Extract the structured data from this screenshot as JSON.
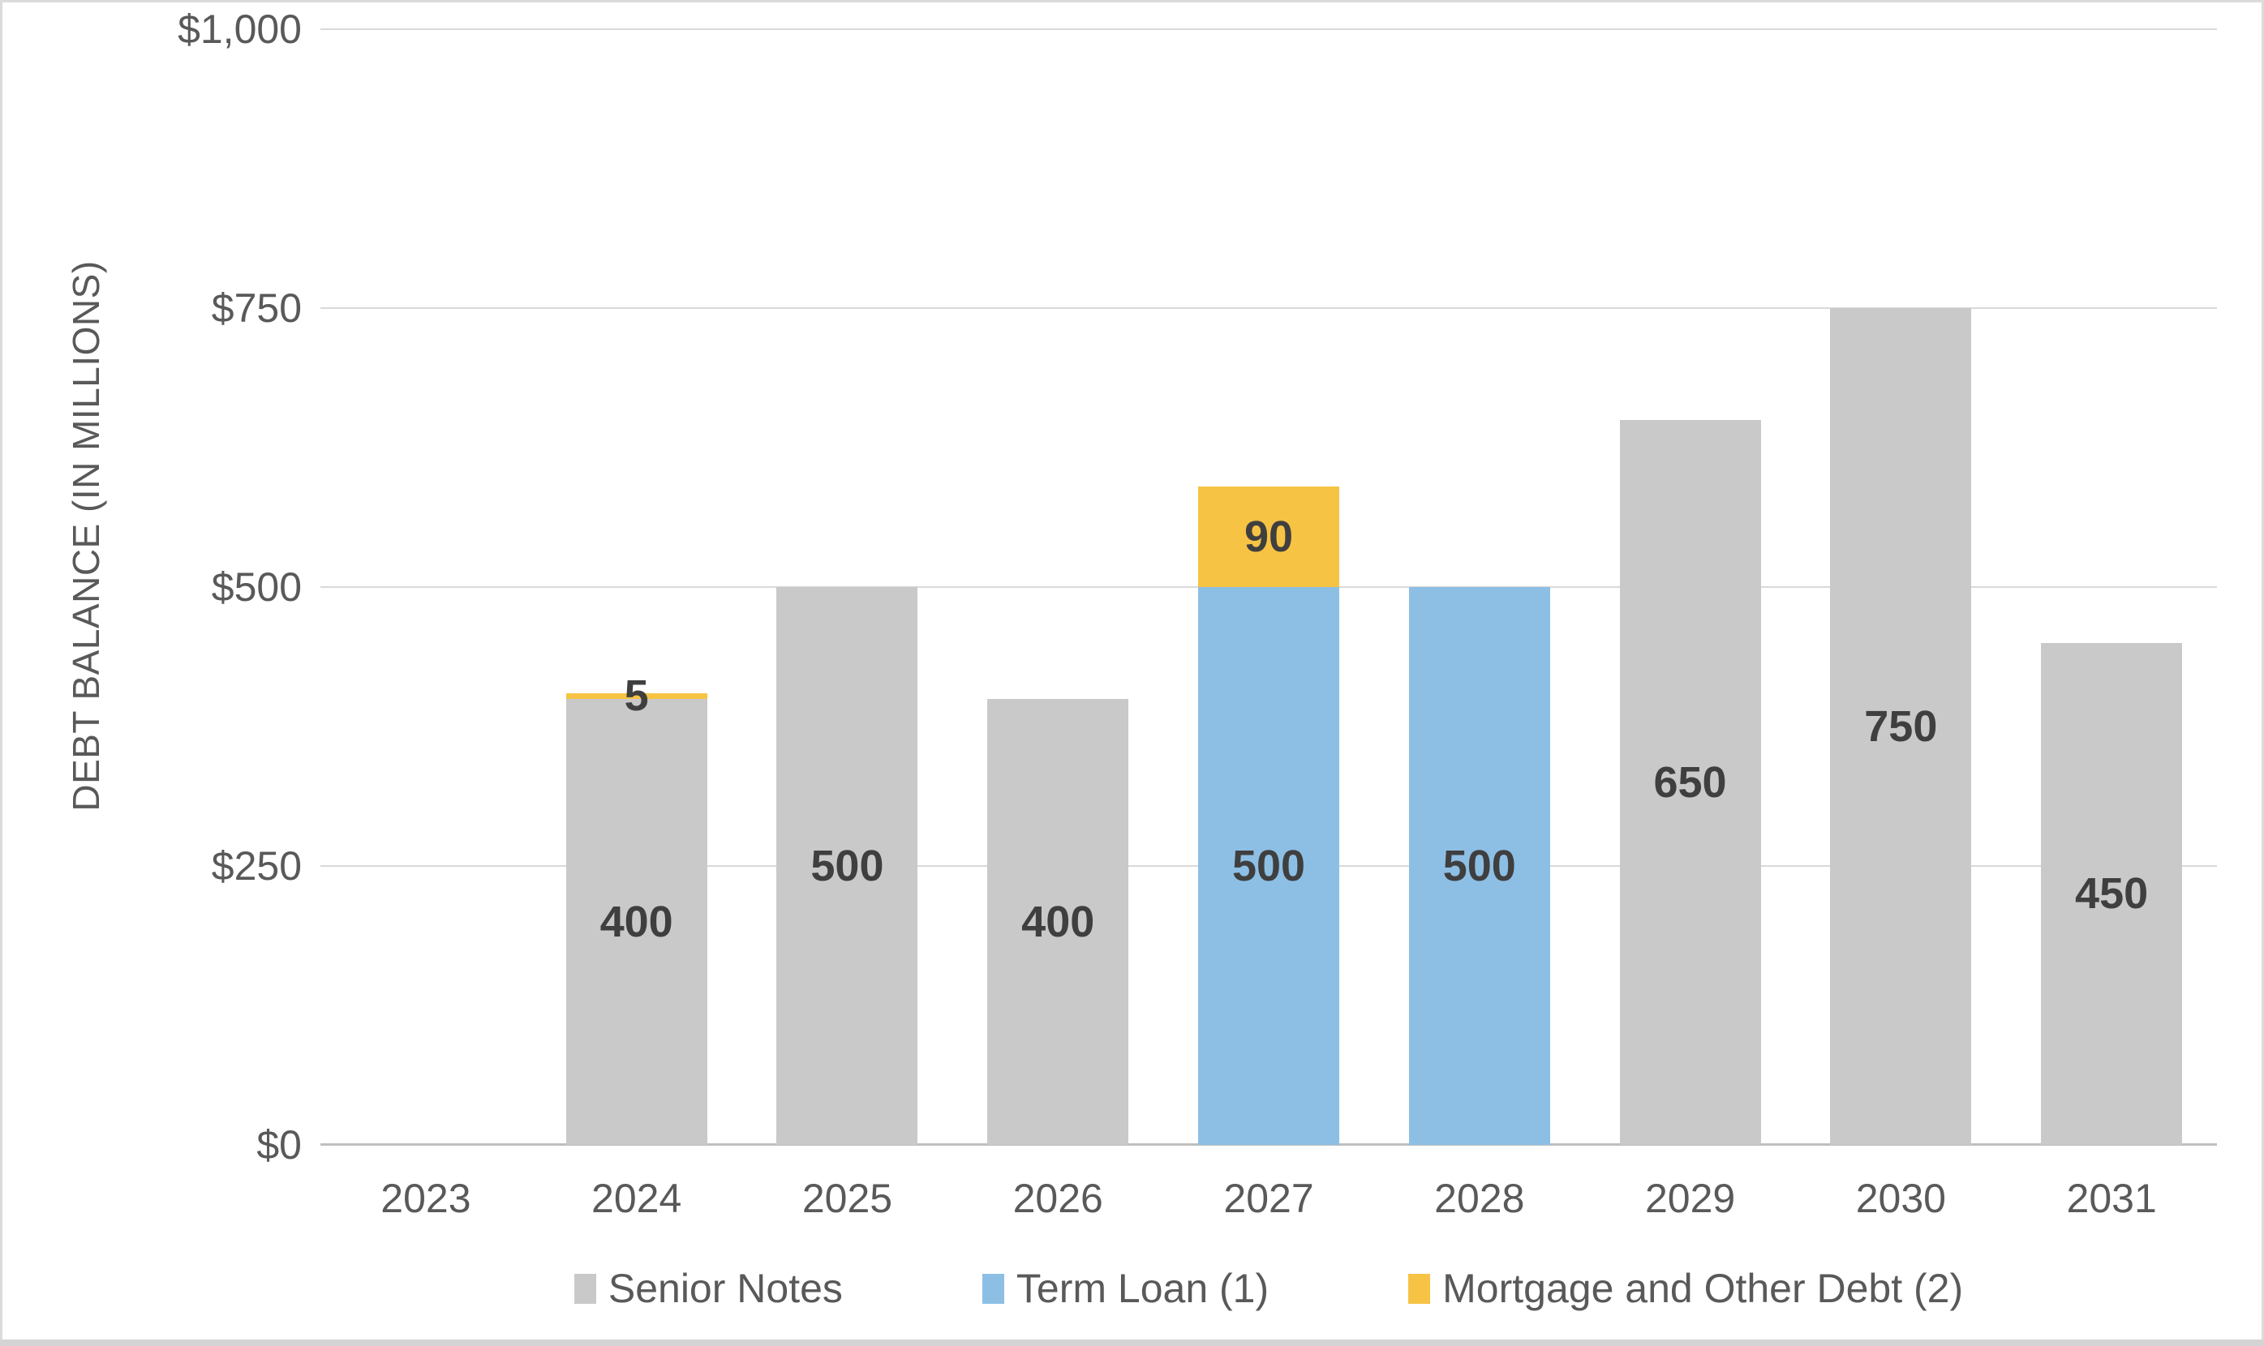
{
  "chart_data": {
    "type": "bar",
    "stacked": true,
    "title": "",
    "xlabel": "",
    "ylabel": "DEBT BALANCE (IN MILLIONS)",
    "categories": [
      "2023",
      "2024",
      "2025",
      "2026",
      "2027",
      "2028",
      "2029",
      "2030",
      "2031"
    ],
    "series": [
      {
        "name": "Senior Notes",
        "color": "#C9C9C9",
        "values": [
          0,
          400,
          500,
          400,
          0,
          0,
          650,
          750,
          450
        ]
      },
      {
        "name": "Term Loan (1)",
        "color": "#8DBFE5",
        "values": [
          0,
          0,
          0,
          0,
          500,
          500,
          0,
          0,
          0
        ]
      },
      {
        "name": "Mortgage and Other Debt (2)",
        "color": "#F6C344",
        "values": [
          0,
          5,
          0,
          0,
          90,
          0,
          0,
          0,
          0
        ]
      }
    ],
    "stack_totals": [
      0,
      405,
      500,
      400,
      590,
      500,
      650,
      750,
      450
    ],
    "ylim": [
      0,
      1000
    ],
    "y_ticks": [
      {
        "value": 0,
        "label": "$0"
      },
      {
        "value": 250,
        "label": "$250"
      },
      {
        "value": 500,
        "label": "$500"
      },
      {
        "value": 750,
        "label": "$750"
      },
      {
        "value": 1000,
        "label": "$1,000"
      }
    ],
    "grid": true,
    "data_labels": true,
    "legend_position": "bottom"
  },
  "colors": {
    "background": "#FFFFFF",
    "gridline": "#D9D9D9",
    "axis_line": "#BFBFBF",
    "axis_text": "#595959",
    "data_label_text": "#3F3F3F",
    "frame_border": "#DBDBDB",
    "bottom_strip": "#D4D4D4"
  }
}
